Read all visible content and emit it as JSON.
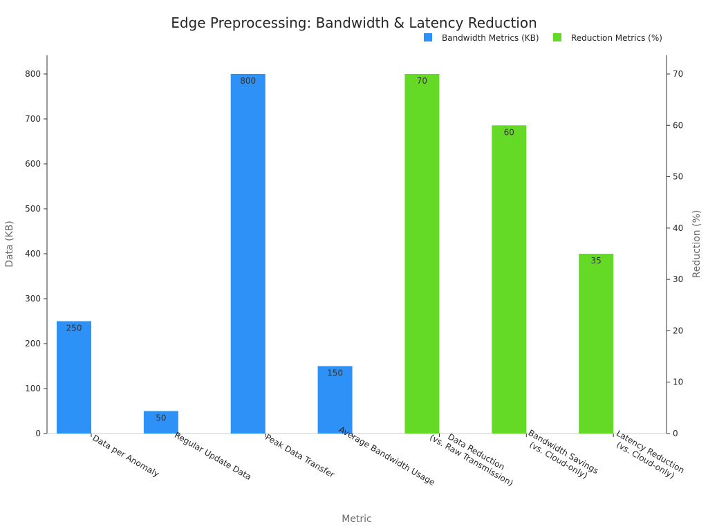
{
  "chart_data": {
    "type": "bar",
    "title": "Edge Preprocessing: Bandwidth & Latency Reduction",
    "xlabel": "Metric",
    "ylabel": "Data (KB)",
    "y2label": "Reduction (%)",
    "ylim": [
      0,
      800
    ],
    "y2lim": [
      0,
      70
    ],
    "yticks": [
      0,
      100,
      200,
      300,
      400,
      500,
      600,
      700,
      800
    ],
    "y2ticks": [
      0,
      10,
      20,
      30,
      40,
      50,
      60,
      70
    ],
    "categories": [
      "Data per Anomaly",
      "Regular Update Data",
      "Peak Data Transfer",
      "Average Bandwidth Usage",
      "Data Reduction\n(vs. Raw Transmission)",
      "Bandwidth Savings\n(vs. Cloud-only)",
      "Latency Reduction\n(vs. Cloud-only)"
    ],
    "series": [
      {
        "name": "Bandwidth Metrics (KB)",
        "axis": "left",
        "color": "#2e91f8",
        "values": [
          250,
          50,
          800,
          150,
          null,
          null,
          null
        ],
        "labels": [
          "250",
          "50",
          "800",
          "150",
          "",
          "",
          ""
        ]
      },
      {
        "name": "Reduction Metrics (%)",
        "axis": "right",
        "color": "#64da26",
        "values": [
          null,
          null,
          null,
          null,
          70,
          60,
          35
        ],
        "labels": [
          "",
          "",
          "",
          "",
          "70",
          "60",
          "35"
        ]
      }
    ],
    "legend_position": "top-right",
    "grid": false
  }
}
